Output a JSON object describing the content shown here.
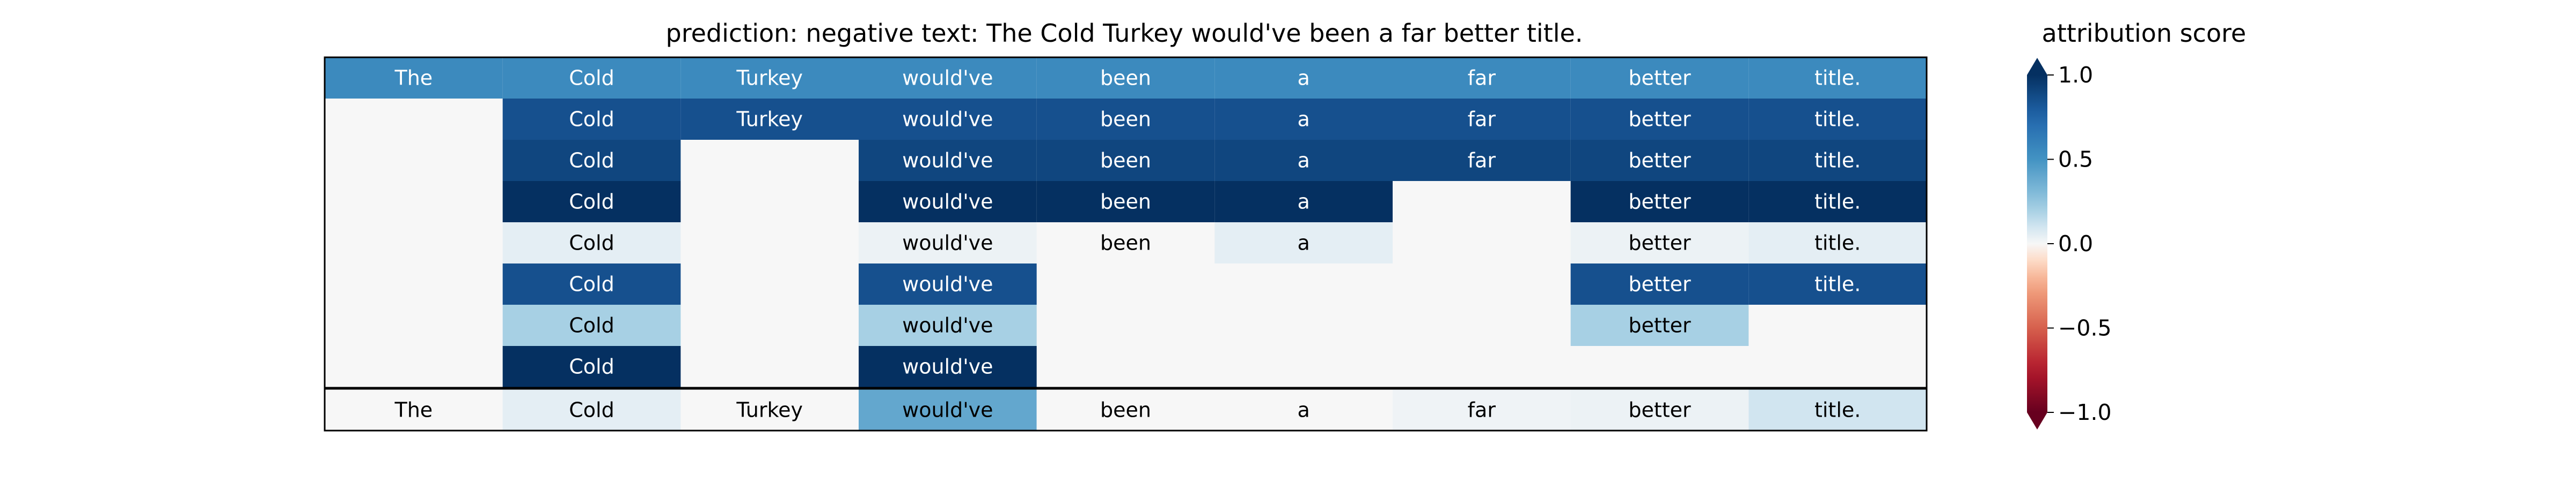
{
  "chart_data": {
    "type": "heatmap",
    "title": "prediction:  negative     text:  The Cold Turkey would've been a far better title.",
    "tokens": [
      "The",
      "Cold",
      "Turkey",
      "would've",
      "been",
      "a",
      "far",
      "better",
      "title."
    ],
    "rows": [
      [
        0.55,
        0.55,
        0.55,
        0.55,
        0.55,
        0.55,
        0.55,
        0.55,
        0.55
      ],
      [
        null,
        0.85,
        0.85,
        0.85,
        0.85,
        0.85,
        0.85,
        0.85,
        0.85
      ],
      [
        null,
        0.9,
        null,
        0.9,
        0.9,
        0.9,
        0.9,
        0.9,
        0.9
      ],
      [
        null,
        1.0,
        null,
        1.0,
        1.0,
        1.0,
        null,
        1.0,
        1.0
      ],
      [
        null,
        0.05,
        null,
        0.03,
        0.0,
        0.05,
        null,
        0.03,
        0.05
      ],
      [
        null,
        0.85,
        null,
        0.85,
        null,
        null,
        null,
        0.85,
        0.85
      ],
      [
        null,
        0.2,
        null,
        0.2,
        null,
        null,
        null,
        0.2,
        null
      ],
      [
        null,
        1.0,
        null,
        1.0,
        null,
        null,
        null,
        null,
        null
      ]
    ],
    "summary_row": [
      0.0,
      0.05,
      0.0,
      0.4,
      0.0,
      0.0,
      0.02,
      0.03,
      0.1
    ],
    "colorbar": {
      "label": "attribution score",
      "colormap": "RdBu",
      "range": [
        -1.0,
        1.0
      ],
      "ticks": [
        1.0,
        0.5,
        0.0,
        -0.5,
        -1.0
      ],
      "tick_labels": [
        "1.0",
        "0.5",
        "0.0",
        "−0.5",
        "−1.0"
      ],
      "extend": "both"
    }
  }
}
